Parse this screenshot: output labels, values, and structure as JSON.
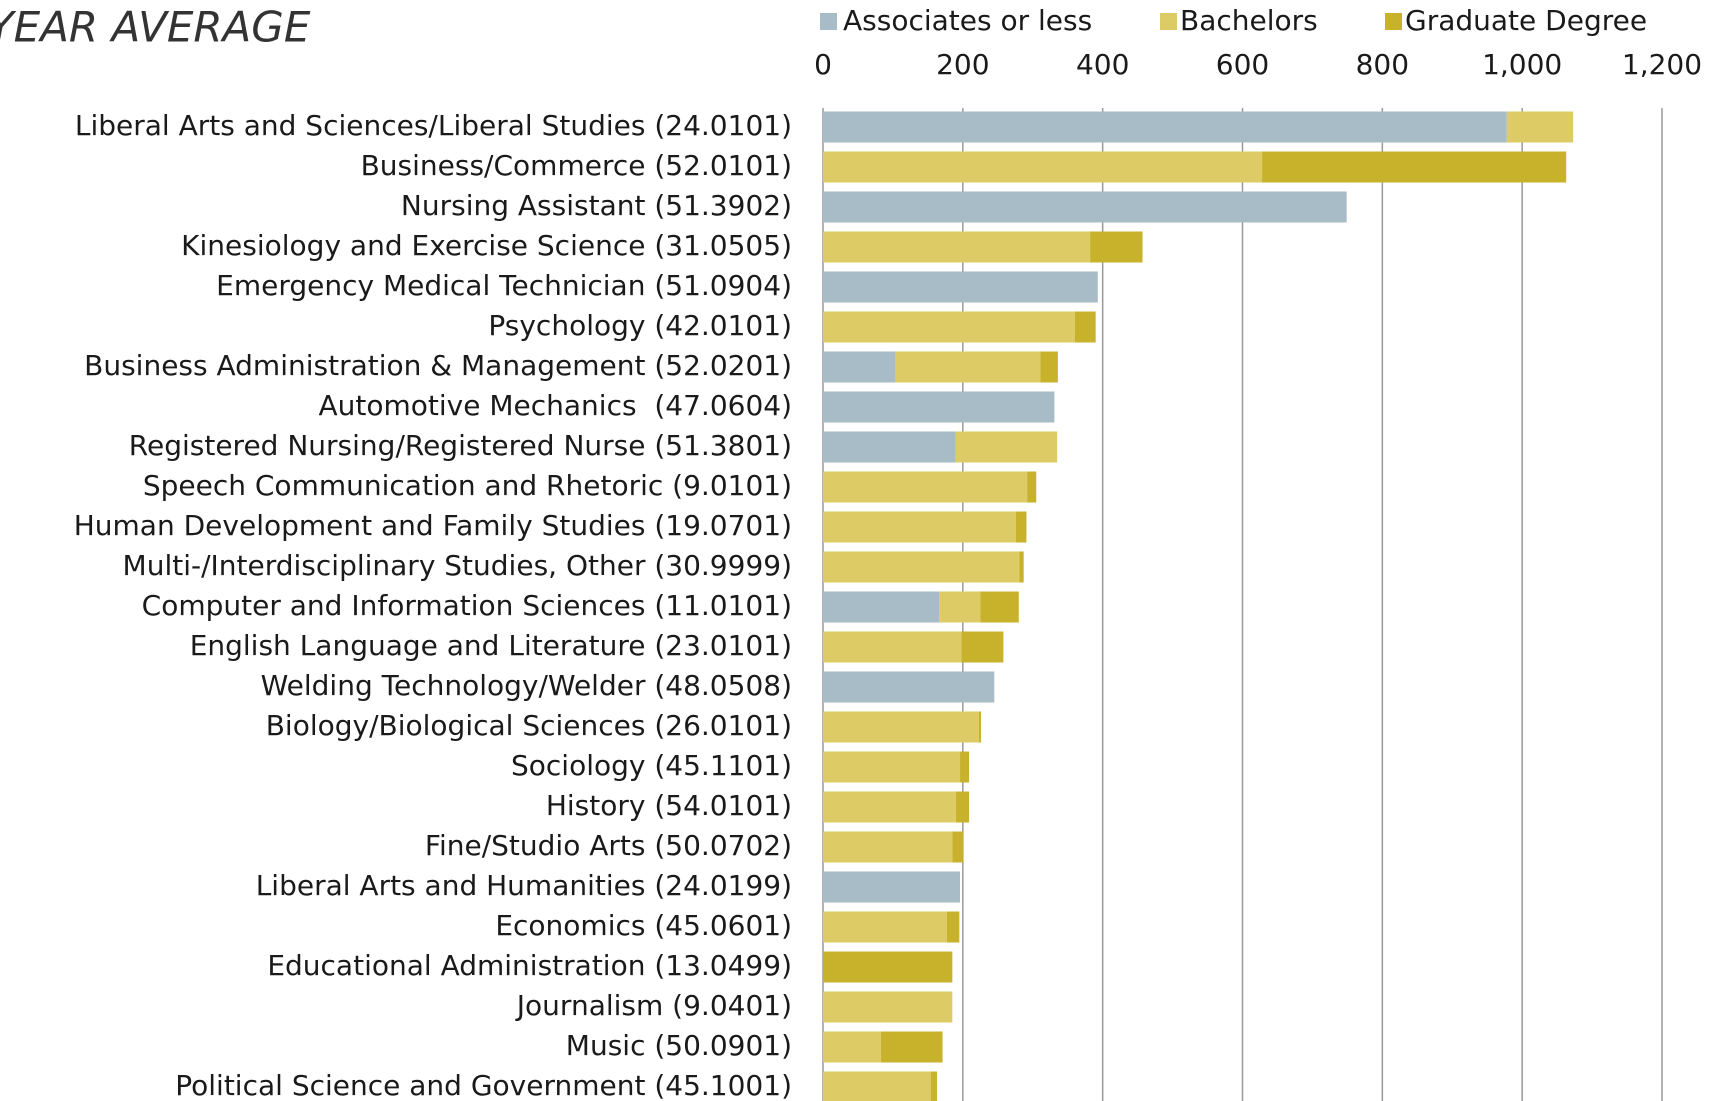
{
  "chart_data": {
    "type": "stacked_barh",
    "title": "YEAR AVERAGE",
    "categories": [
      "Liberal Arts and Sciences/Liberal Studies (24.0101)",
      "Business/Commerce (52.0101)",
      "Nursing Assistant (51.3902)",
      "Kinesiology and Exercise Science (31.0505)",
      "Emergency Medical Technician (51.0904)",
      "Psychology (42.0101)",
      "Business Administration & Management (52.0201)",
      "Automotive Mechanics  (47.0604)",
      "Registered Nursing/Registered Nurse (51.3801)",
      "Speech Communication and Rhetoric (9.0101)",
      "Human Development and Family Studies (19.0701)",
      "Multi-/Interdisciplinary Studies, Other (30.9999)",
      "Computer and Information Sciences (11.0101)",
      "English Language and Literature (23.0101)",
      "Welding Technology/Welder (48.0508)",
      "Biology/Biological Sciences (26.0101)",
      "Sociology (45.1101)",
      "History (54.0101)",
      "Fine/Studio Arts (50.0702)",
      "Liberal Arts and Humanities (24.0199)",
      "Economics (45.0601)",
      "Educational Administration (13.0499)",
      "Journalism (9.0401)",
      "Music (50.0901)",
      "Political Science and Government (45.1001)"
    ],
    "series": [
      {
        "name": "Associates or less",
        "color": "#a7bcc6",
        "values": [
          978,
          0,
          749,
          0,
          393,
          0,
          104,
          331,
          190,
          0,
          0,
          0,
          166,
          0,
          245,
          0,
          0,
          0,
          0,
          196,
          0,
          0,
          0,
          0,
          0
        ]
      },
      {
        "name": "Bachelors",
        "color": "#ddcc66",
        "values": [
          95,
          628,
          0,
          382,
          0,
          360,
          207,
          0,
          145,
          292,
          276,
          281,
          59,
          198,
          0,
          223,
          196,
          190,
          185,
          0,
          177,
          0,
          185,
          83,
          154
        ]
      },
      {
        "name": "Graduate Degree",
        "color": "#c8b22c",
        "values": [
          0,
          435,
          0,
          75,
          0,
          30,
          25,
          0,
          0,
          13,
          15,
          6,
          55,
          60,
          0,
          3,
          13,
          19,
          16,
          0,
          18,
          185,
          0,
          88,
          9
        ]
      }
    ],
    "xlim": [
      0,
      1200
    ],
    "xticks": [
      0,
      200,
      400,
      600,
      800,
      {
        "value": 1000,
        "label": "1,000"
      },
      {
        "value": 1200,
        "label": "1,200"
      }
    ],
    "grid": true,
    "legend": "top"
  }
}
